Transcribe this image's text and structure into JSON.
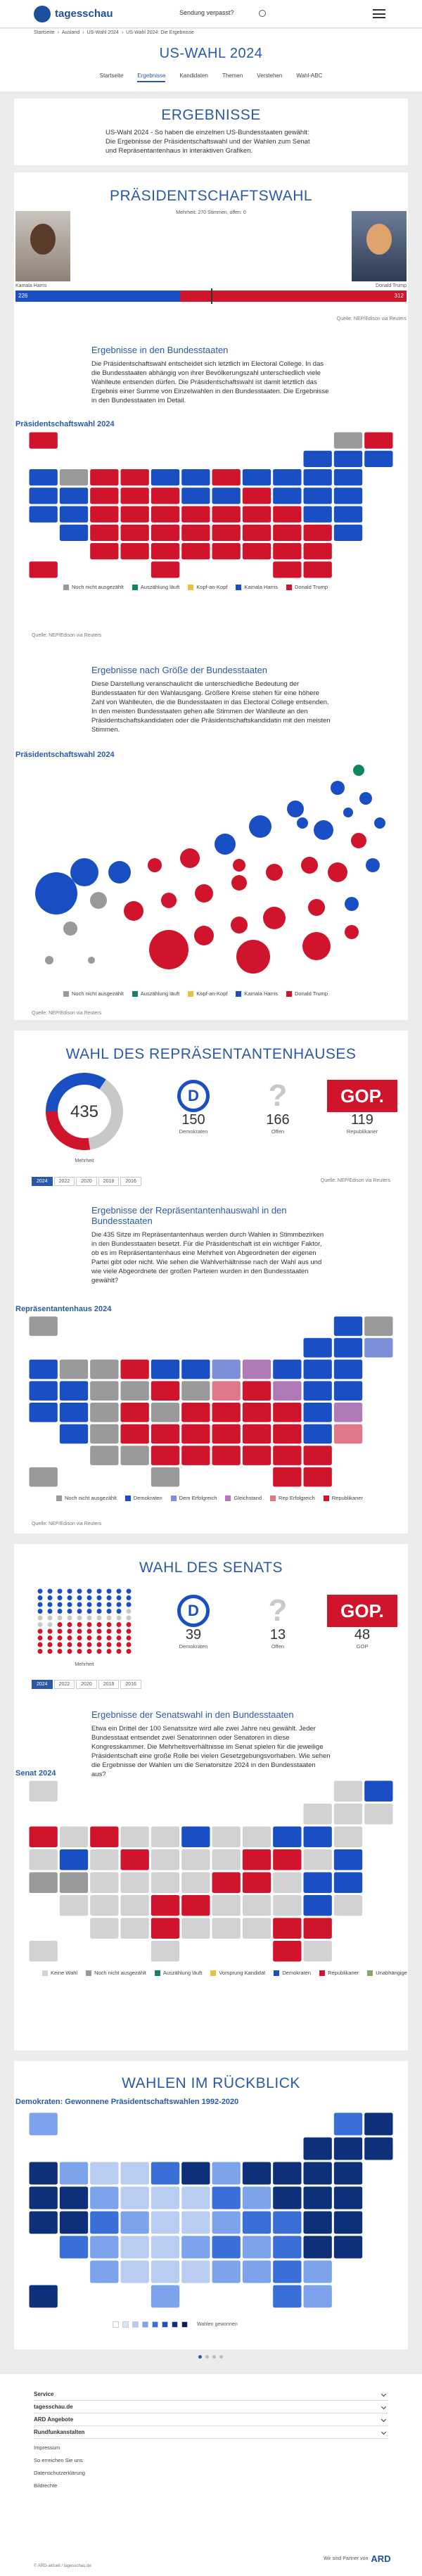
{
  "header": {
    "logo": "tagesschau",
    "missed": "Sendung verpasst?"
  },
  "breadcrumb": [
    "Startseite",
    "Ausland",
    "US-Wahl 2024",
    "US-Wahl 2024: Die Ergebnisse"
  ],
  "title": "US-WAHL 2024",
  "nav": [
    "Startseite",
    "Ergebnisse",
    "Kandidaten",
    "Themen",
    "Verstehen",
    "Wahl-ABC"
  ],
  "intro": {
    "heading": "ERGEBNISSE",
    "text": "US-Wahl 2024 - So haben die einzelnen US-Bundesstaaten gewählt: Die Ergebnisse der Präsidentschaftswahl und der Wahlen zum Senat und Repräsentantenhaus in interaktiven Grafiken."
  },
  "president": {
    "heading": "PRÄSIDENTSCHAFTSWAHL",
    "majority": "Mehrheit: 270 Stimmen, offen: 0",
    "candidates": [
      {
        "name": "Kamala Harris",
        "votes": 226,
        "color": "#1a4fc4"
      },
      {
        "name": "Donald Trump",
        "votes": 312,
        "color": "#d0142c"
      }
    ],
    "source": "Quelle: NEP/Edison via Reuters",
    "states_heading": "Ergebnisse in den Bundesstaaten",
    "states_text": "Die Präsidentschaftswahl entscheidet sich letztlich im Electoral College. In das die Bundesstaaten abhängig von ihrer Bevölkerungszahl unterschiedlich viele Wahlleute entsenden dürfen. Die Präsidentschaftswahl ist damit letztlich das Ergebnis einer Summe von Einzelwahlen in den Bundesstaaten. Die Ergebnisse in den Bundesstaaten im Detail.",
    "map_title": "Präsidentschaftswahl 2024",
    "legend": [
      {
        "name": "Noch nicht ausgezählt",
        "color": "#9a9a9a"
      },
      {
        "name": "Auszählung läuft",
        "color": "#12855a"
      },
      {
        "name": "Kopf-an-Kopf",
        "color": "#e8c23a"
      },
      {
        "name": "Kamala Harris",
        "color": "#1a4fc4"
      },
      {
        "name": "Donald Trump",
        "color": "#d0142c"
      }
    ],
    "size_heading": "Ergebnisse nach Größe der Bundesstaaten",
    "size_text": "Diese Darstellung veranschaulicht die unterschiedliche Bedeutung der Bundesstaaten für den Wahlausgang. Größere Kreise stehen für eine höhere Zahl von Wahlleuten, die die Bundesstaaten in das Electoral College entsenden. In den meisten Bundesstaaten gehen alle Stimmen der Wahlleute an den Präsidentschaftskandidaten oder die Präsidentschaftskandidatin mit den meisten Stimmen.",
    "size_title": "Präsidentschaftswahl 2024"
  },
  "house": {
    "heading": "WAHL DES REPRÄSENTANTENHAUSES",
    "seats": 435,
    "majority_label": "Mehrheit",
    "parties": [
      {
        "logo": "D",
        "name": "Demokraten",
        "seats": 150,
        "color": "#1a4fc4"
      },
      {
        "logo": "?",
        "name": "Offen",
        "seats": 166,
        "color": "#c8c8c8"
      },
      {
        "logo": "GOP.",
        "name": "Republikaner",
        "seats": 119,
        "color": "#d0142c"
      }
    ],
    "years": [
      "2024",
      "2022",
      "2020",
      "2018",
      "2016"
    ],
    "source": "Quelle: NEP/Edison via Reuters",
    "states_heading": "Ergebnisse der Repräsentantenhauswahl in den Bundesstaaten",
    "states_text": "Die 435 Sitze im Repräsentantenhaus werden durch Wahlen in Stimmbezirken in den Bundesstaaten besetzt. Für die Präsidentschaft ist ein wichtiger Faktor, ob es im Repräsentantenhaus eine Mehrheit von Abgeordneten der eigenen Partei gibt oder nicht. Wie sehen die Wahlverhältnisse nach der Wahl aus und wie viele Abgeordnete der großen Parteien wurden in den Bundesstaaten gewählt?",
    "map_title": "Repräsentantenhaus 2024",
    "legend": [
      {
        "name": "Noch nicht ausgezählt",
        "color": "#9a9a9a"
      },
      {
        "name": "Demokraten",
        "color": "#1a4fc4"
      },
      {
        "name": "Dem Erfolgreich",
        "color": "#7d8fd8"
      },
      {
        "name": "Gleichstand",
        "color": "#b07ab8"
      },
      {
        "name": "Rep Erfolgreich",
        "color": "#e0788a"
      },
      {
        "name": "Republikaner",
        "color": "#d0142c"
      }
    ]
  },
  "senate": {
    "heading": "WAHL DES SENATS",
    "majority_label": "Mehrheit",
    "parties": [
      {
        "logo": "D",
        "name": "Demokraten",
        "seats": 39,
        "color": "#1a4fc4"
      },
      {
        "logo": "?",
        "name": "Offen",
        "seats": 13,
        "color": "#c8c8c8"
      },
      {
        "logo": "GOP.",
        "name": "GOP",
        "seats": 48,
        "color": "#d0142c"
      }
    ],
    "years": [
      "2024",
      "2022",
      "2020",
      "2018",
      "2016"
    ],
    "states_heading": "Ergebnisse der Senatswahl in den Bundesstaaten",
    "states_text": "Etwa ein Drittel der 100 Senatssitze wird alle zwei Jahre neu gewählt. Jeder Bundesstaat entsendet zwei Senatorinnen oder Senatoren in diese Kongresskammer. Die Mehrheitsverhältnisse im Senat spielen für die jeweilige Präsidentschaft eine große Rolle bei vielen Gesetzgebungsvorhaben. Wie sehen die Ergebnisse der Wahlen um die Senatorsitze 2024 in den Bundesstaaten aus?",
    "map_title": "Senat 2024",
    "legend": [
      {
        "name": "Keine Wahl",
        "color": "#d2d2d2"
      },
      {
        "name": "Noch nicht ausgezählt",
        "color": "#9a9a9a"
      },
      {
        "name": "Auszählung läuft",
        "color": "#12855a"
      },
      {
        "name": "Vorsprung Kandidat",
        "color": "#e8c23a"
      },
      {
        "name": "Demokraten",
        "color": "#1a4fc4"
      },
      {
        "name": "Republikaner",
        "color": "#d0142c"
      },
      {
        "name": "Unabhängige",
        "color": "#8aa56a"
      }
    ]
  },
  "review": {
    "heading": "WAHLEN IM RÜCKBLICK",
    "subheading": "Demokraten: Gewonnene Präsidentschaftswahlen 1992-2020",
    "legend_label": "Wahlen gewonnen"
  },
  "footer": {
    "menu": [
      "Service",
      "tagesschau.de",
      "ARD Angebote",
      "Rundfunkanstalten"
    ],
    "links": [
      "Impressum",
      "So erreichen Sie uns",
      "Datenschutzerklärung",
      "Bildrechte"
    ],
    "copyright": "© ARD-aktuell / tagesschau.de",
    "partner": "Wir sind Partner von",
    "partner_logo": "ARD"
  }
}
